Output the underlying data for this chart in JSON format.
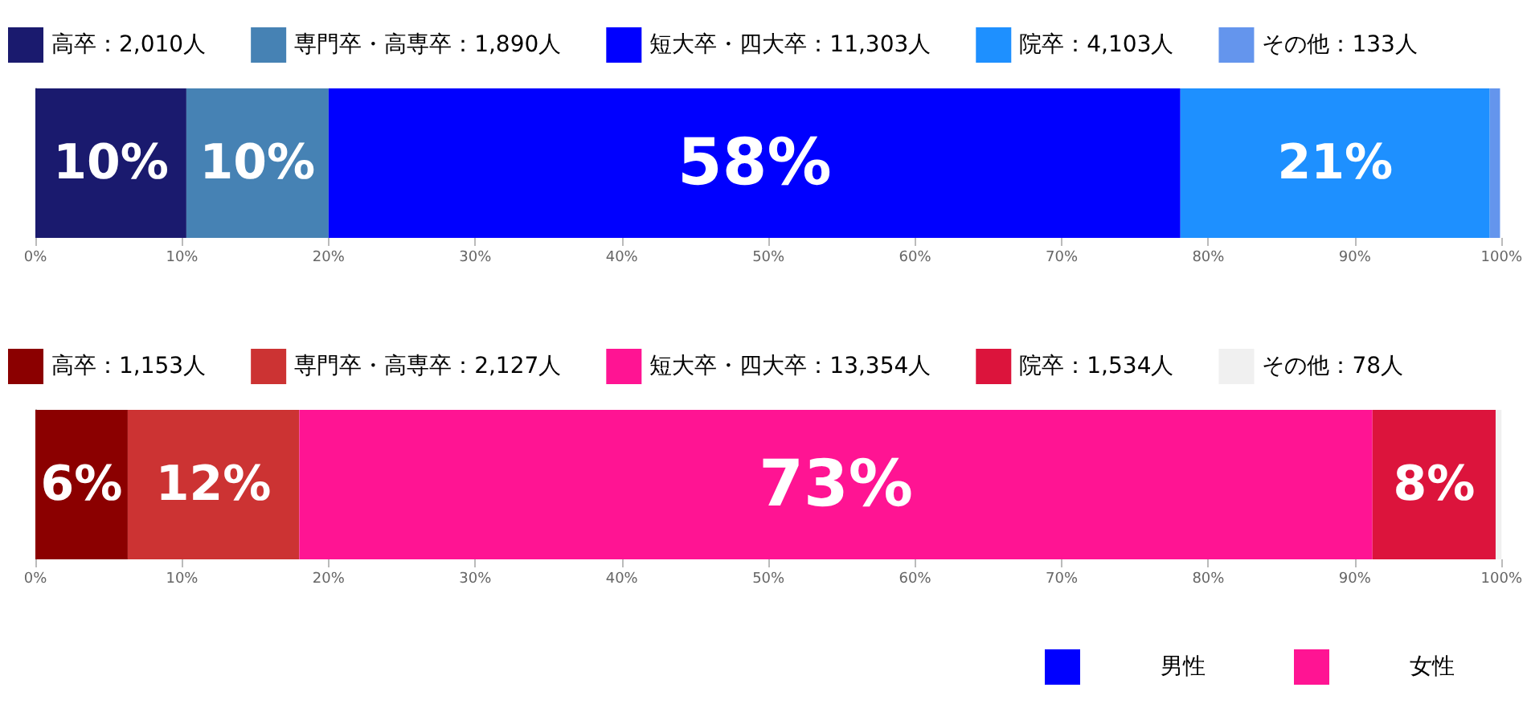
{
  "chart_data": [
    {
      "type": "bar",
      "orientation": "horizontal",
      "stacked": true,
      "categories": [
        null
      ],
      "xlim": [
        0,
        100
      ],
      "xticks": [
        {
          "value": 0,
          "label": "0%"
        },
        {
          "value": 10,
          "label": "10%"
        },
        {
          "value": 20,
          "label": "20%"
        },
        {
          "value": 30,
          "label": "30%"
        },
        {
          "value": 40,
          "label": "40%"
        },
        {
          "value": 50,
          "label": "50%"
        },
        {
          "value": 60,
          "label": "60%"
        },
        {
          "value": 70,
          "label": "70%"
        },
        {
          "value": 80,
          "label": "80%"
        },
        {
          "value": 90,
          "label": "90%"
        },
        {
          "value": 100,
          "label": "100%"
        }
      ],
      "tick_labels": "x",
      "grid": false,
      "legend": "top",
      "series": [
        {
          "name": "高卒：2,010人",
          "color": "#1a1a6e",
          "values": [
            10.3
          ],
          "value_labels": [
            "10%"
          ]
        },
        {
          "name": "専門卒・高専卒：1,890人",
          "color": "#4682b4",
          "values": [
            9.7
          ],
          "value_labels": [
            "10%"
          ]
        },
        {
          "name": "短大卒・四大卒：11,303人",
          "color": "#0000ff",
          "values": [
            58.1
          ],
          "value_labels": [
            "58%"
          ]
        },
        {
          "name": "院卒：4,103人",
          "color": "#1e90ff",
          "values": [
            21.1
          ],
          "value_labels": [
            "21%"
          ]
        },
        {
          "name": "その他：133人",
          "color": "#6495ed",
          "values": [
            0.7
          ],
          "value_labels": [
            null
          ]
        }
      ]
    },
    {
      "type": "bar",
      "orientation": "horizontal",
      "stacked": true,
      "categories": [
        null
      ],
      "xlim": [
        0,
        100
      ],
      "xticks": [
        {
          "value": 0,
          "label": "0%"
        },
        {
          "value": 10,
          "label": "10%"
        },
        {
          "value": 20,
          "label": "20%"
        },
        {
          "value": 30,
          "label": "30%"
        },
        {
          "value": 40,
          "label": "40%"
        },
        {
          "value": 50,
          "label": "50%"
        },
        {
          "value": 60,
          "label": "60%"
        },
        {
          "value": 70,
          "label": "70%"
        },
        {
          "value": 80,
          "label": "80%"
        },
        {
          "value": 90,
          "label": "90%"
        },
        {
          "value": 100,
          "label": "100%"
        }
      ],
      "tick_labels": "x",
      "grid": false,
      "legend": "top",
      "series": [
        {
          "name": "高卒：1,153人",
          "color": "#8b0000",
          "values": [
            6.3
          ],
          "value_labels": [
            "6%"
          ]
        },
        {
          "name": "専門卒・高専卒：2,127人",
          "color": "#cc3333",
          "values": [
            11.7
          ],
          "value_labels": [
            "12%"
          ]
        },
        {
          "name": "短大卒・四大卒：13,354人",
          "color": "#ff1493",
          "values": [
            73.2
          ],
          "value_labels": [
            "73%"
          ]
        },
        {
          "name": "院卒：1,534人",
          "color": "#dc143c",
          "values": [
            8.4
          ],
          "value_labels": [
            "8%"
          ]
        },
        {
          "name": "その他：78人",
          "color": "#f0f0f0",
          "values": [
            0.4
          ],
          "value_labels": [
            null
          ]
        }
      ]
    },
    {
      "type": "other",
      "categories": [
        "男性",
        "女性"
      ],
      "colors": [
        "#0000ff",
        "#ff1493"
      ]
    }
  ]
}
